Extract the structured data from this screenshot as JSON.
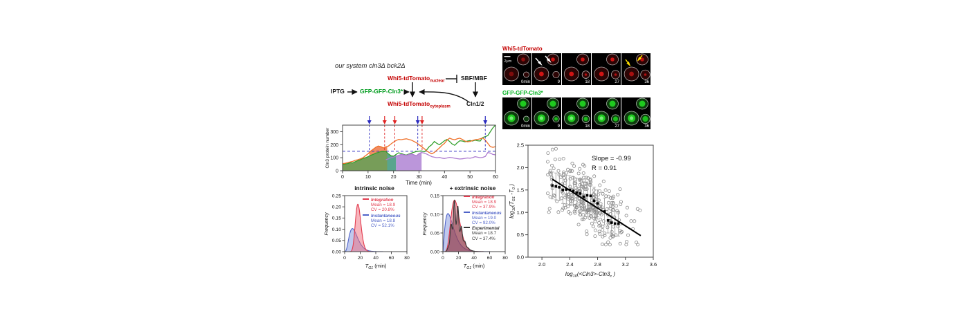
{
  "diagram": {
    "title": "our system cln3Δ bck2Δ",
    "iptg": "IPTG",
    "gfp_cln3": "GFP-GFP-Cln3*",
    "whi5_main": "Whi5-tdTomato",
    "whi5_nuclear_sub": "nuclear",
    "whi5_cyto_main": "Whi5-tdTomato",
    "whi5_cyto_sub": "cytoplasm",
    "sbf_mbf": "SBF/MBF",
    "cln12": "Cln1/2",
    "red": "#c40000",
    "green": "#009c1e"
  },
  "microscopy": {
    "row1_label": "Whi5-tdTomato",
    "row2_label": "GFP-GFP-Cln3*",
    "scale_bar_label": "2μm",
    "frame_times": [
      "0min",
      "9",
      "18",
      "27",
      "36"
    ],
    "row1_color": "#c40000",
    "row2_color": "#00b31e"
  },
  "chart_data": [
    {
      "id": "cln3-timeseries",
      "type": "line",
      "xlabel": "Time (min)",
      "ylabel": "Cln3 protein number",
      "xlim": [
        0,
        60
      ],
      "ylim": [
        0,
        350
      ],
      "xticks": [
        0,
        10,
        20,
        30,
        40,
        50,
        60
      ],
      "yticks": [
        0,
        100,
        200,
        300
      ],
      "threshold": {
        "value": 150,
        "color": "#2b2bbf"
      },
      "event_markers": [
        {
          "t": 10.5,
          "color": "#2b2bbf"
        },
        {
          "t": 16.5,
          "color": "#e02525"
        },
        {
          "t": 20.5,
          "color": "#e02525"
        },
        {
          "t": 29.5,
          "color": "#2b2bbf"
        },
        {
          "t": 31.2,
          "color": "#e02525"
        },
        {
          "t": 56,
          "color": "#2b2bbf"
        }
      ],
      "series": [
        {
          "name": "trace-green",
          "color": "#33a02c",
          "t0": 0,
          "values": [
            48,
            52,
            55,
            62,
            60,
            70,
            78,
            85,
            95,
            100,
            108,
            118,
            125,
            135,
            140,
            148,
            150,
            148,
            130,
            115,
            112,
            125,
            138,
            132,
            125,
            120,
            128,
            135,
            142,
            148,
            150,
            152,
            145,
            160,
            185,
            200,
            225,
            210,
            200,
            215,
            230,
            240,
            225,
            205,
            195,
            215,
            230,
            228,
            222,
            228,
            232,
            228,
            235,
            230,
            228,
            255,
            262,
            270,
            300,
            330,
            350
          ]
        },
        {
          "name": "trace-orange",
          "color": "#ef7028",
          "t0": 0,
          "values": [
            55,
            58,
            62,
            68,
            72,
            80,
            85,
            92,
            100,
            115,
            130,
            150,
            165,
            180,
            190,
            185,
            175,
            183,
            190,
            205,
            220,
            232,
            240,
            238,
            242,
            245,
            240,
            235,
            225,
            215,
            200,
            185,
            170,
            152,
            140,
            130,
            140,
            158,
            175,
            195,
            210,
            235,
            250,
            242,
            238,
            245,
            250,
            240,
            228,
            222,
            225,
            232,
            238,
            240,
            245,
            252,
            235,
            210,
            185,
            180,
            185
          ]
        },
        {
          "name": "trace-purple",
          "color": "#ad7bd0",
          "t0": 17,
          "values": [
            85,
            92,
            100,
            105,
            112,
            118,
            125,
            122,
            118,
            124,
            130,
            122,
            115,
            132,
            140,
            135,
            128,
            118,
            108,
            104,
            100,
            103,
            97,
            94,
            98,
            103,
            100,
            96,
            93,
            90,
            92,
            95,
            98,
            96,
            100,
            108,
            104,
            100,
            103,
            110,
            140,
            135,
            125,
            122
          ]
        }
      ],
      "fills": [
        {
          "mode": "under",
          "series": 0,
          "from": 0,
          "to": 17.5,
          "color": "#55852f",
          "opacity": 0.8
        },
        {
          "mode": "between",
          "upper": 1,
          "lower": 0,
          "from": 10.5,
          "to": 17.5,
          "color": "#f08052",
          "opacity": 0.9
        },
        {
          "mode": "under",
          "series": 0,
          "from": 17.5,
          "to": 21,
          "color": "#2f8f72",
          "opacity": 0.8
        },
        {
          "mode": "under",
          "series": 2,
          "from": 21,
          "to": 31,
          "color": "#b48bd6",
          "opacity": 0.9
        }
      ]
    },
    {
      "id": "hist-intrinsic",
      "type": "area",
      "title": "intrinsic noise",
      "ylabel": "Frequency",
      "xlabel_rich": [
        {
          "t": "T",
          "i": true
        },
        {
          "t": "G1",
          "sub": true,
          "i": true
        },
        {
          "t": " (min)"
        }
      ],
      "xlim": [
        0,
        80
      ],
      "ylim": [
        0,
        0.25
      ],
      "xticks": [
        0,
        20,
        40,
        60,
        80
      ],
      "yticks": [
        "0.00",
        "0.05",
        "0.10",
        "0.15",
        "0.20",
        "0.25"
      ],
      "series": [
        {
          "name": "Instantaneous",
          "color": "#4f63c8",
          "fill": "#8093dd",
          "peak_x": 10,
          "peak_y": 0.103,
          "shape_k": 3.3,
          "jagged": false
        },
        {
          "name": "Integration",
          "color": "#e23b4e",
          "fill": "#ef6b7c",
          "peak_x": 17,
          "peak_y": 0.212,
          "shape_k": 23,
          "jagged": false
        }
      ],
      "legend": [
        {
          "label": "Integration",
          "mean": "Mean = 18.9",
          "cv": "CV = 20.8%",
          "color": "#e23b4e"
        },
        {
          "label": "Instantaneous",
          "mean": "Mean = 18.8",
          "cv": "CV = 52.1%",
          "color": "#4f63c8"
        }
      ]
    },
    {
      "id": "hist-extrinsic",
      "type": "area",
      "title": "+ extrinsic noise",
      "ylabel": "Frequency",
      "xlabel_rich": [
        {
          "t": "T",
          "i": true
        },
        {
          "t": "G1",
          "sub": true,
          "i": true
        },
        {
          "t": " (min)"
        }
      ],
      "xlim": [
        0,
        80
      ],
      "ylim": [
        0,
        0.15
      ],
      "xticks": [
        0,
        20,
        40,
        60,
        80
      ],
      "yticks": [
        "0.00",
        "0.05",
        "0.10",
        "0.15"
      ],
      "series": [
        {
          "name": "Instantaneous",
          "color": "#4f63c8",
          "fill": "#8093dd",
          "peak_x": 6.5,
          "peak_y": 0.102,
          "shape_k": 1.35,
          "jagged": false
        },
        {
          "name": "Integration",
          "color": "#e23b4e",
          "fill": "#ef6b7c",
          "peak_x": 15,
          "peak_y": 0.138,
          "shape_k": 7,
          "jagged": false
        },
        {
          "name": "Experimental",
          "color": "#3a3a3a",
          "fill": "#6b3040",
          "peak_x": 16,
          "peak_y": 0.108,
          "shape_k": 7.5,
          "jagged": true
        }
      ],
      "legend": [
        {
          "label": "Integration",
          "mean": "Mean = 18.9",
          "cv": "CV = 37.9%",
          "color": "#e23b4e"
        },
        {
          "label": "Instantaneous",
          "mean": "Mean = 19.0",
          "cv": "CV = 92.0%",
          "color": "#4f63c8"
        },
        {
          "label": "Experimental",
          "mean": "Mean = 18.7",
          "cv": "CV = 37.4%",
          "color": "#3a3a3a"
        }
      ]
    },
    {
      "id": "scatter-g1-vs-cln3",
      "type": "scatter",
      "xlabel_rich": [
        {
          "t": "log",
          "i": true
        },
        {
          "t": "10",
          "sub": true,
          "i": true
        },
        {
          "t": "(<Cln3>-Cln3",
          "i": true
        },
        {
          "t": "c",
          "sub": true,
          "i": true
        },
        {
          "t": " )",
          "i": true
        }
      ],
      "ylabel_rich": [
        {
          "t": "log",
          "i": true
        },
        {
          "t": "10",
          "sub": true,
          "i": true
        },
        {
          "t": "(T",
          "i": true
        },
        {
          "t": "G1",
          "sub": true,
          "i": true
        },
        {
          "t": " -T",
          "i": true
        },
        {
          "t": "0",
          "sub": true,
          "i": true
        },
        {
          "t": " )",
          "i": true
        }
      ],
      "xlim": [
        1.8,
        3.6
      ],
      "ylim": [
        0,
        2.5
      ],
      "xticks": [
        "2.0",
        "2.4",
        "2.8",
        "3.2",
        "3.6"
      ],
      "yticks": [
        "0.0",
        "0.5",
        "1.0",
        "1.5",
        "2.0",
        "2.5"
      ],
      "annotation": {
        "line1": "Slope = -0.99",
        "line2": "R  = 0.91"
      },
      "fit_line": {
        "x1": 2.15,
        "y1": 1.74,
        "x2": 3.42,
        "y2": 0.48
      },
      "means": [
        {
          "x": 2.15,
          "y": 1.6,
          "err": 0.3
        },
        {
          "x": 2.2,
          "y": 1.58,
          "err": 0.3
        },
        {
          "x": 2.25,
          "y": 1.56,
          "err": 0.3
        },
        {
          "x": 2.3,
          "y": 1.5,
          "err": 0.3
        },
        {
          "x": 2.35,
          "y": 1.51,
          "err": 0.32
        },
        {
          "x": 2.4,
          "y": 1.5,
          "err": 0.32
        },
        {
          "x": 2.45,
          "y": 1.48,
          "err": 0.32
        },
        {
          "x": 2.5,
          "y": 1.44,
          "err": 0.32
        },
        {
          "x": 2.55,
          "y": 1.42,
          "err": 0.32
        },
        {
          "x": 2.6,
          "y": 1.35,
          "err": 0.32
        },
        {
          "x": 2.65,
          "y": 1.38,
          "err": 0.3
        },
        {
          "x": 2.7,
          "y": 1.37,
          "err": 0.3
        },
        {
          "x": 2.75,
          "y": 1.26,
          "err": 0.3
        },
        {
          "x": 2.8,
          "y": 1.2,
          "err": 0.3
        },
        {
          "x": 2.9,
          "y": 1.02,
          "err": 0.3
        },
        {
          "x": 2.95,
          "y": 0.82,
          "err": 0.28
        },
        {
          "x": 3.0,
          "y": 0.77,
          "err": 0.28
        },
        {
          "x": 3.05,
          "y": 0.75,
          "err": 0.28
        },
        {
          "x": 3.1,
          "y": 0.75,
          "err": 0.28
        }
      ],
      "cloud": {
        "n": 310,
        "seed": 12,
        "x_center": 2.62,
        "x_sd": 0.32,
        "x_min": 2.08,
        "x_max": 3.45,
        "intercept": 3.87,
        "slope": -0.99,
        "y_sd": 0.32,
        "y_min": 0.28,
        "y_max": 2.42
      },
      "point_style": {
        "circle_color": "#8a8a8a",
        "mean_color": "#000000",
        "errbar_color": "#999999"
      }
    }
  ]
}
